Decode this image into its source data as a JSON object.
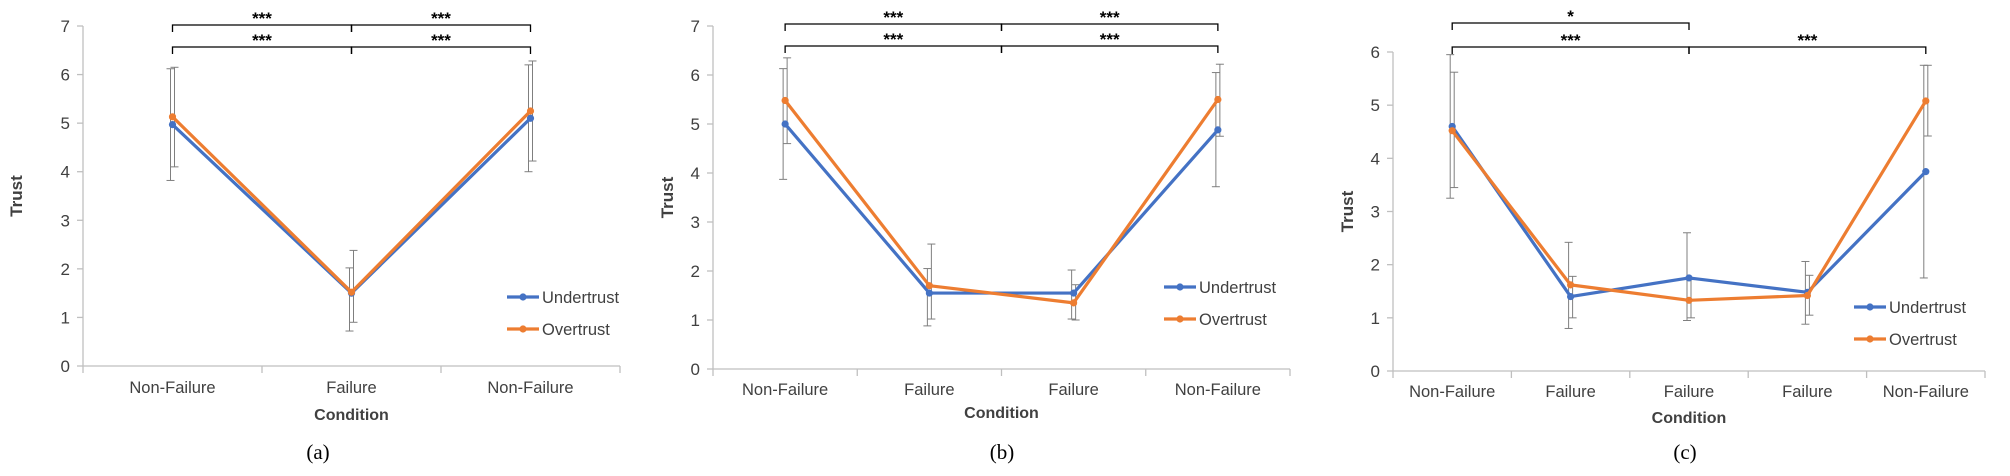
{
  "colors": {
    "undertrust": "#4472C4",
    "overtrust": "#ED7D31",
    "axis": "#BFBFBF",
    "text": "#404040",
    "errorbar": "#7F7F7F",
    "bracket": "#000000"
  },
  "chart_data": [
    {
      "type": "line",
      "caption": "(a)",
      "xlabel": "Condition",
      "ylabel": "Trust",
      "ylim": [
        0,
        7
      ],
      "yticks": [
        "0",
        "1",
        "2",
        "3",
        "4",
        "5",
        "6",
        "7"
      ],
      "categories": [
        "Non-Failure",
        "Failure",
        "Non-Failure"
      ],
      "legend_position": "bottom-right",
      "series": [
        {
          "name": "Undertrust",
          "values": [
            4.97,
            1.5,
            5.1
          ],
          "err_low": [
            3.82,
            0.72,
            4.0
          ],
          "err_high": [
            6.12,
            2.02,
            6.2
          ]
        },
        {
          "name": "Overtrust",
          "values": [
            5.13,
            1.52,
            5.25
          ],
          "err_low": [
            4.1,
            0.9,
            4.22
          ],
          "err_high": [
            6.15,
            2.38,
            6.28
          ]
        }
      ],
      "significance": [
        {
          "from": 0,
          "to": 1,
          "label": "***",
          "level": 1
        },
        {
          "from": 1,
          "to": 2,
          "label": "***",
          "level": 1
        },
        {
          "from": 0,
          "to": 1,
          "label": "***",
          "level": 0
        },
        {
          "from": 1,
          "to": 2,
          "label": "***",
          "level": 0
        }
      ]
    },
    {
      "type": "line",
      "caption": "(b)",
      "xlabel": "Condition",
      "ylabel": "Trust",
      "ylim": [
        0,
        7
      ],
      "yticks": [
        "0",
        "1",
        "2",
        "3",
        "4",
        "5",
        "6",
        "7"
      ],
      "categories": [
        "Non-Failure",
        "Failure",
        "Failure",
        "Non-Failure"
      ],
      "legend_position": "bottom-right",
      "series": [
        {
          "name": "Undertrust",
          "values": [
            5.0,
            1.55,
            1.55,
            4.88
          ],
          "err_low": [
            3.87,
            0.88,
            1.02,
            3.72
          ],
          "err_high": [
            6.13,
            2.05,
            2.02,
            6.05
          ]
        },
        {
          "name": "Overtrust",
          "values": [
            5.48,
            1.7,
            1.35,
            5.5
          ],
          "err_low": [
            4.6,
            1.02,
            1.0,
            4.75
          ],
          "err_high": [
            6.35,
            2.55,
            1.72,
            6.22
          ]
        }
      ],
      "significance": [
        {
          "from": 0,
          "to": 1.5,
          "label": "***",
          "level": 1
        },
        {
          "from": 1.5,
          "to": 3,
          "label": "***",
          "level": 1
        },
        {
          "from": 0,
          "to": 1.5,
          "label": "***",
          "level": 0
        },
        {
          "from": 1.5,
          "to": 3,
          "label": "***",
          "level": 0
        }
      ]
    },
    {
      "type": "line",
      "caption": "(c)",
      "xlabel": "Condition",
      "ylabel": "Trust",
      "ylim": [
        0,
        6
      ],
      "yticks": [
        "0",
        "1",
        "2",
        "3",
        "4",
        "5",
        "6"
      ],
      "categories": [
        "Non-Failure",
        "Failure",
        "Failure",
        "Failure",
        "Non-Failure"
      ],
      "legend_position": "bottom-right",
      "series": [
        {
          "name": "Undertrust",
          "values": [
            4.6,
            1.4,
            1.75,
            1.48,
            3.75
          ],
          "err_low": [
            3.25,
            0.8,
            0.95,
            0.88,
            1.75
          ],
          "err_high": [
            5.95,
            2.42,
            2.6,
            2.06,
            5.75
          ]
        },
        {
          "name": "Overtrust",
          "values": [
            4.52,
            1.62,
            1.33,
            1.42,
            5.08
          ],
          "err_low": [
            3.45,
            1.0,
            1.0,
            1.05,
            4.42
          ],
          "err_high": [
            5.62,
            1.78,
            1.72,
            1.8,
            5.75
          ]
        }
      ],
      "significance": [
        {
          "from": 0,
          "to": 2,
          "label": "***",
          "level": 1
        },
        {
          "from": 2,
          "to": 4,
          "label": "***",
          "level": 1
        },
        {
          "from": 0,
          "to": 2,
          "label": "*",
          "level": 0
        }
      ]
    }
  ]
}
